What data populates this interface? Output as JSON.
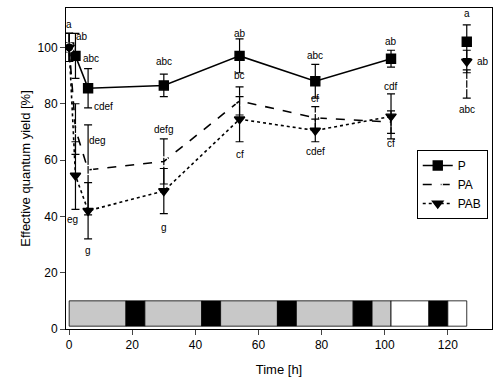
{
  "chart_data": {
    "type": "line",
    "x_label": "Time [h]",
    "y_label": "Effective quantum yield [%]",
    "x": [
      0,
      2,
      6,
      30,
      54,
      78,
      102,
      114,
      126
    ],
    "series": [
      {
        "name": "P",
        "color": "#000000",
        "marker": "square",
        "line_style": "solid",
        "values": [
          100,
          97,
          85.5,
          86.5,
          97,
          88,
          96,
          null,
          102
        ],
        "errors": [
          5,
          8,
          7,
          4,
          6,
          6,
          3,
          null,
          6
        ]
      },
      {
        "name": "PA",
        "color": "#000000",
        "marker": "circle-open",
        "line_style": "dash",
        "values": [
          100,
          71,
          56.5,
          59.5,
          81,
          75,
          73.5,
          null,
          87
        ],
        "errors": [
          5,
          9,
          16,
          8,
          5,
          4,
          4,
          null,
          5
        ]
      },
      {
        "name": "PAB",
        "color": "#000000",
        "marker": "triangle-down",
        "line_style": "dot",
        "values": [
          100,
          54.5,
          42,
          49,
          74.5,
          70.5,
          75.5,
          null,
          95
        ],
        "errors": [
          5,
          12,
          10,
          8,
          8,
          4,
          8,
          null,
          4
        ]
      }
    ],
    "annotations": [
      {
        "x": 0,
        "y": 108,
        "text": "a"
      },
      {
        "x": 4,
        "y": 104,
        "text": "ab"
      },
      {
        "x": 7,
        "y": 96,
        "text": "abc"
      },
      {
        "x": 30,
        "y": 95,
        "text": "abc"
      },
      {
        "x": 54,
        "y": 105,
        "text": "ab"
      },
      {
        "x": 78,
        "y": 97,
        "text": "abc"
      },
      {
        "x": 102,
        "y": 102,
        "text": "ab"
      },
      {
        "x": 126,
        "y": 112,
        "text": "a"
      },
      {
        "x": 11,
        "y": 79,
        "text": "cdef"
      },
      {
        "x": 9,
        "y": 67,
        "text": "deg"
      },
      {
        "x": 30,
        "y": 71,
        "text": "defg"
      },
      {
        "x": 54,
        "y": 90,
        "text": "bc"
      },
      {
        "x": 78,
        "y": 82,
        "text": "cf"
      },
      {
        "x": 102,
        "y": 86,
        "text": "cdf"
      },
      {
        "x": 126,
        "y": 78,
        "text": "abc"
      },
      {
        "x": 1,
        "y": 39,
        "text": "eg"
      },
      {
        "x": 6,
        "y": 28,
        "text": "g"
      },
      {
        "x": 30,
        "y": 36,
        "text": "g"
      },
      {
        "x": 54,
        "y": 62,
        "text": "cf"
      },
      {
        "x": 78,
        "y": 63,
        "text": "cdef"
      },
      {
        "x": 102,
        "y": 66,
        "text": "cf"
      },
      {
        "x": 131,
        "y": 95,
        "text": "ab"
      }
    ],
    "photoperiod": {
      "y0": 1,
      "y1": 10,
      "segments": [
        {
          "start": 0,
          "end": 18,
          "color": "#c8c8c8"
        },
        {
          "start": 18,
          "end": 24,
          "color": "#000000"
        },
        {
          "start": 24,
          "end": 42,
          "color": "#c8c8c8"
        },
        {
          "start": 42,
          "end": 48,
          "color": "#000000"
        },
        {
          "start": 48,
          "end": 66,
          "color": "#c8c8c8"
        },
        {
          "start": 66,
          "end": 72,
          "color": "#000000"
        },
        {
          "start": 72,
          "end": 90,
          "color": "#c8c8c8"
        },
        {
          "start": 90,
          "end": 96,
          "color": "#000000"
        },
        {
          "start": 96,
          "end": 102,
          "color": "#c8c8c8"
        },
        {
          "start": 102,
          "end": 114,
          "color": "#ffffff"
        },
        {
          "start": 114,
          "end": 120,
          "color": "#000000"
        },
        {
          "start": 120,
          "end": 126,
          "color": "#ffffff"
        }
      ]
    },
    "xlim": [
      -1,
      134
    ],
    "ylim": [
      0,
      114
    ],
    "xticks": [
      0,
      20,
      40,
      60,
      80,
      100,
      120
    ],
    "yticks": [
      0,
      20,
      40,
      60,
      80,
      100
    ],
    "legend": "right",
    "grid": false
  }
}
